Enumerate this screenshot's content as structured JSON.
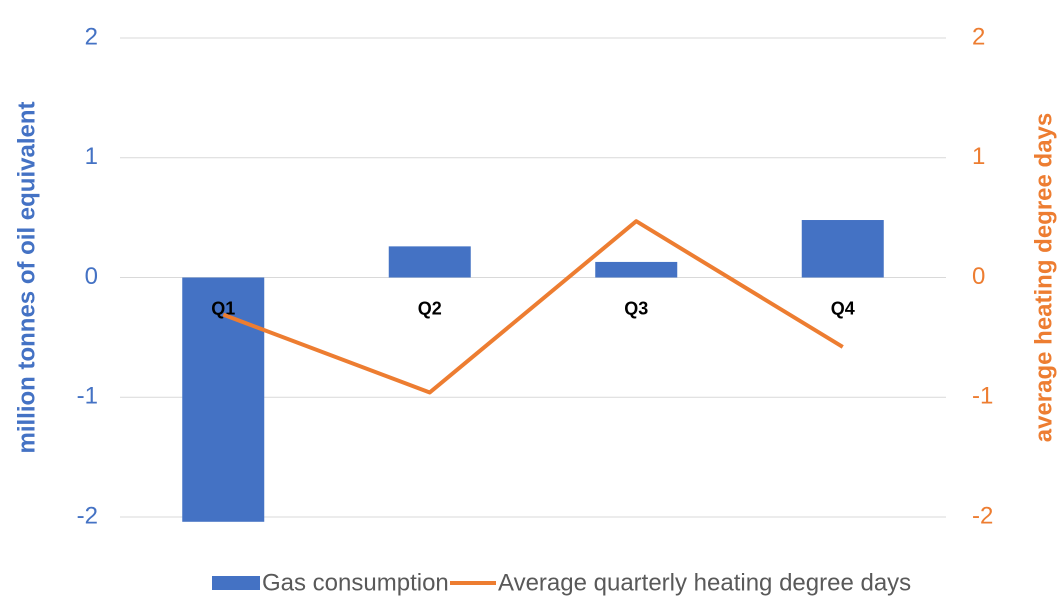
{
  "chart_data": {
    "type": "bar-line",
    "categories": [
      "Q1",
      "Q2",
      "Q3",
      "Q4"
    ],
    "series": [
      {
        "name": "Gas consumption",
        "type": "bar",
        "color": "#4472c4",
        "values": [
          -2.04,
          0.26,
          0.13,
          0.48
        ]
      },
      {
        "name": "Average quarterly heating degree days",
        "type": "line",
        "axis": "y2",
        "color": "#ed7d31",
        "values": [
          -0.31,
          -0.96,
          0.47,
          -0.58
        ]
      }
    ],
    "ylabel": "million tonnes of oil equivalent",
    "y2label": "average heating degree days",
    "ylim": [
      -2,
      2
    ],
    "yticks": [
      -2,
      -1,
      0,
      1,
      2
    ],
    "y2lim": [
      -2,
      2
    ],
    "y2ticks": [
      -2,
      -1,
      0,
      1,
      2
    ],
    "grid": true,
    "legend": "bottom"
  }
}
